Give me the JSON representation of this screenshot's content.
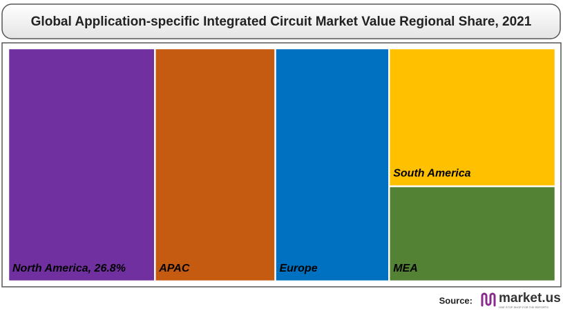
{
  "chart_data": {
    "type": "treemap",
    "title": "Global Application-specific Integrated Circuit Market Value Regional Share, 2021",
    "categories": [
      "North America",
      "APAC",
      "Europe",
      "South America",
      "MEA"
    ],
    "values": [
      26.8,
      22.0,
      20.8,
      18.0,
      12.4
    ],
    "value_labels": [
      "26.8%",
      null,
      null,
      null,
      null
    ],
    "colors": [
      "#7030a0",
      "#c55a11",
      "#0070c0",
      "#ffc000",
      "#548235"
    ]
  },
  "footer": {
    "source": "Source:",
    "logo_text": "market.us",
    "logo_tagline": "ONE STOP SHOP FOR THE REPORTS"
  }
}
